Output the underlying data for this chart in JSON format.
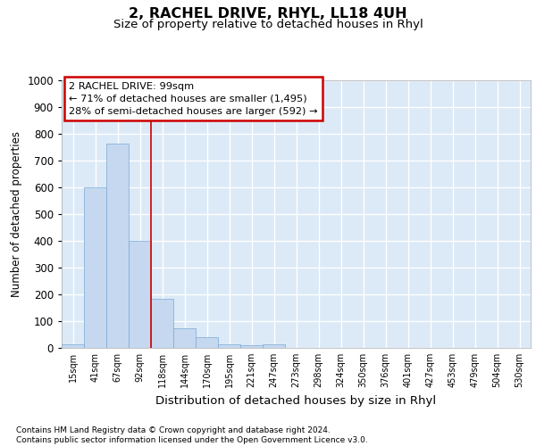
{
  "title": "2, RACHEL DRIVE, RHYL, LL18 4UH",
  "subtitle": "Size of property relative to detached houses in Rhyl",
  "xlabel": "Distribution of detached houses by size in Rhyl",
  "ylabel": "Number of detached properties",
  "categories": [
    "15sqm",
    "41sqm",
    "67sqm",
    "92sqm",
    "118sqm",
    "144sqm",
    "170sqm",
    "195sqm",
    "221sqm",
    "247sqm",
    "273sqm",
    "298sqm",
    "324sqm",
    "350sqm",
    "376sqm",
    "401sqm",
    "427sqm",
    "453sqm",
    "479sqm",
    "504sqm",
    "530sqm"
  ],
  "values": [
    15,
    600,
    765,
    400,
    185,
    75,
    40,
    15,
    10,
    15,
    0,
    0,
    0,
    0,
    0,
    0,
    0,
    0,
    0,
    0,
    0
  ],
  "bar_color": "#c5d8f0",
  "bar_edge_color": "#7aa8d4",
  "bg_color": "#dce9f7",
  "grid_color": "#ffffff",
  "vline_x": 3.5,
  "annotation_line1": "2 RACHEL DRIVE: 99sqm",
  "annotation_line2": "← 71% of detached houses are smaller (1,495)",
  "annotation_line3": "28% of semi-detached houses are larger (592) →",
  "annotation_box_facecolor": "#ffffff",
  "annotation_box_edgecolor": "#cc0000",
  "footnote_line1": "Contains HM Land Registry data © Crown copyright and database right 2024.",
  "footnote_line2": "Contains public sector information licensed under the Open Government Licence v3.0.",
  "ylim": [
    0,
    1000
  ],
  "yticks": [
    0,
    100,
    200,
    300,
    400,
    500,
    600,
    700,
    800,
    900,
    1000
  ]
}
